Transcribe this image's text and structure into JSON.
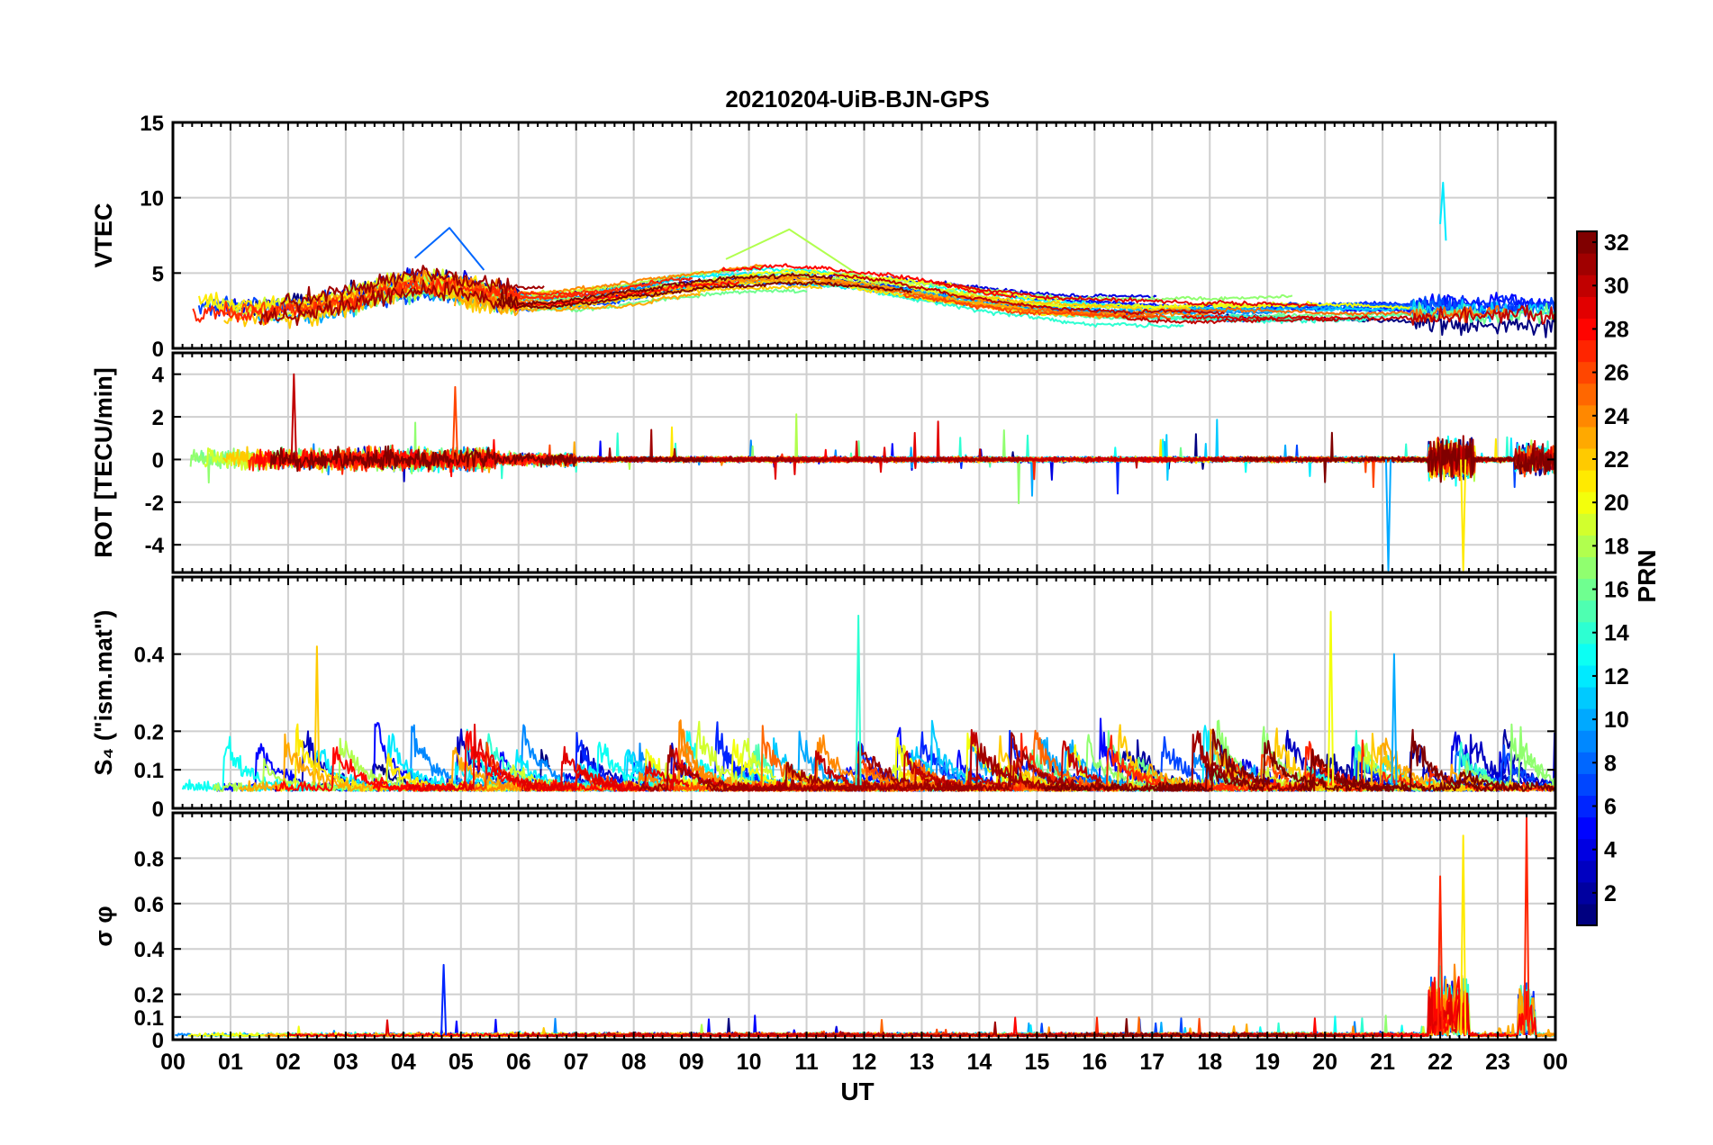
{
  "chart_data": {
    "type": "line",
    "title": "20210204-UiB-BJN-GPS",
    "xlabel": "UT",
    "x_ticks": [
      "00",
      "01",
      "02",
      "03",
      "04",
      "05",
      "06",
      "07",
      "08",
      "09",
      "10",
      "11",
      "12",
      "13",
      "14",
      "15",
      "16",
      "17",
      "18",
      "19",
      "20",
      "21",
      "22",
      "23",
      "00"
    ],
    "xlim": [
      0,
      24
    ],
    "grid": true,
    "colorbar": {
      "label": "PRN",
      "range": [
        1,
        32
      ],
      "ticks": [
        2,
        4,
        6,
        8,
        10,
        12,
        14,
        16,
        18,
        20,
        22,
        24,
        26,
        28,
        30,
        32
      ],
      "colormap": "jet"
    },
    "panels": [
      {
        "id": "vtec",
        "ylabel": "VTEC",
        "ylim": [
          0,
          15
        ],
        "yticks": [
          0,
          5,
          10,
          15
        ],
        "features": [
          {
            "prn": 12,
            "start": 22.0,
            "end": 22.1,
            "peak": 11.0
          },
          {
            "prn": 18,
            "start": 9.6,
            "end": 11.8,
            "peak": 7.9
          },
          {
            "prn": 8,
            "start": 4.2,
            "end": 5.4,
            "peak": 8.0
          }
        ]
      },
      {
        "id": "rot",
        "ylabel": "ROT [TECU/min]",
        "ylim": [
          -5.3,
          5.0
        ],
        "yticks": [
          -4,
          -2,
          0,
          2,
          4
        ],
        "features": [
          {
            "prn": 30,
            "time": 2.1,
            "value": 4.0
          },
          {
            "prn": 10,
            "time": 21.1,
            "value": -5.2
          },
          {
            "prn": 21,
            "time": 22.4,
            "value": -5.2
          },
          {
            "prn": 26,
            "time": 4.9,
            "value": 3.4
          }
        ]
      },
      {
        "id": "s4",
        "ylabel": "S₄ (\"ism.mat\")",
        "ylim": [
          0,
          0.6
        ],
        "yticks": [
          0,
          0.1,
          0.2,
          0.4
        ],
        "features": [
          {
            "prn": 14,
            "time": 11.9,
            "value": 0.5
          },
          {
            "prn": 20,
            "time": 20.1,
            "value": 0.51
          },
          {
            "prn": 22,
            "time": 2.5,
            "value": 0.42
          },
          {
            "prn": 10,
            "time": 21.2,
            "value": 0.4
          }
        ]
      },
      {
        "id": "sigma_phi",
        "ylabel": "σ φ",
        "ylim": [
          0,
          1.0
        ],
        "yticks": [
          0,
          0.1,
          0.2,
          0.4,
          0.6,
          0.8
        ],
        "features": [
          {
            "prn": 27,
            "time": 23.5,
            "value": 0.98
          },
          {
            "prn": 21,
            "time": 22.4,
            "value": 0.9
          },
          {
            "prn": 27,
            "time": 22.0,
            "value": 0.72
          },
          {
            "prn": 6,
            "time": 4.7,
            "value": 0.33
          }
        ]
      }
    ]
  }
}
